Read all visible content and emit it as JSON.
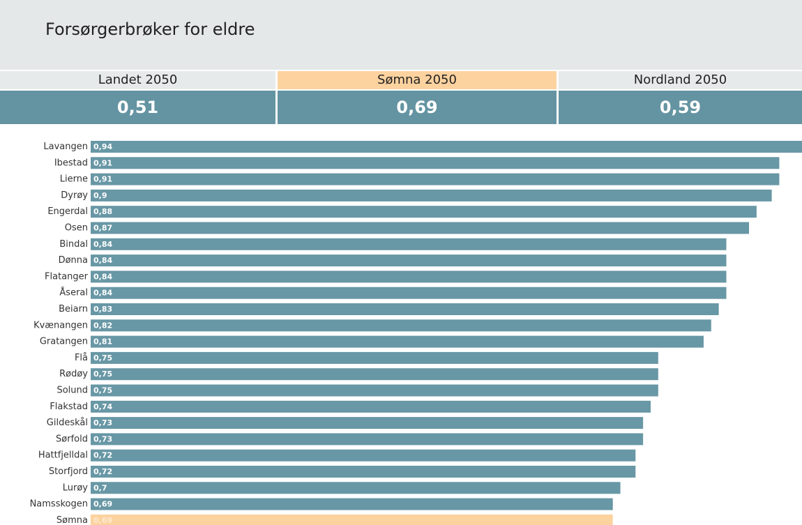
{
  "header": {
    "title": "Forsørgerbrøker for eldre"
  },
  "kpis": [
    {
      "label": "Landet 2050",
      "value": "0,51"
    },
    {
      "label": "Sømna 2050",
      "value": "0,69"
    },
    {
      "label": "Nordland 2050",
      "value": "0,59"
    }
  ],
  "chart_data": {
    "type": "bar",
    "orientation": "horizontal",
    "categories": [
      "Lavangen",
      "Ibestad",
      "Lierne",
      "Dyrøy",
      "Engerdal",
      "Osen",
      "Bindal",
      "Dønna",
      "Flatanger",
      "Åseral",
      "Beiarn",
      "Kvænangen",
      "Gratangen",
      "Flå",
      "Rødøy",
      "Solund",
      "Flakstad",
      "Gildeskål",
      "Sørfold",
      "Hattfjelldal",
      "Storfjord",
      "Lurøy",
      "Namsskogen",
      "Sømna"
    ],
    "values": [
      0.94,
      0.91,
      0.91,
      0.9,
      0.88,
      0.87,
      0.84,
      0.84,
      0.84,
      0.84,
      0.83,
      0.82,
      0.81,
      0.75,
      0.75,
      0.75,
      0.74,
      0.73,
      0.73,
      0.72,
      0.72,
      0.7,
      0.69,
      0.69
    ],
    "value_labels": [
      "0,94",
      "0,91",
      "0,91",
      "0,9",
      "0,88",
      "0,87",
      "0,84",
      "0,84",
      "0,84",
      "0,84",
      "0,83",
      "0,82",
      "0,81",
      "0,75",
      "0,75",
      "0,75",
      "0,74",
      "0,73",
      "0,73",
      "0,72",
      "0,72",
      "0,7",
      "0,69",
      "0,69"
    ],
    "colors": [
      "#6897a5",
      "#6897a5",
      "#6897a5",
      "#6897a5",
      "#6897a5",
      "#6897a5",
      "#6897a5",
      "#6897a5",
      "#6897a5",
      "#6897a5",
      "#6897a5",
      "#6897a5",
      "#6897a5",
      "#6897a5",
      "#6897a5",
      "#6897a5",
      "#6897a5",
      "#6897a5",
      "#6897a5",
      "#6897a5",
      "#6897a5",
      "#6897a5",
      "#6897a5",
      "#fcd29f"
    ]
  }
}
